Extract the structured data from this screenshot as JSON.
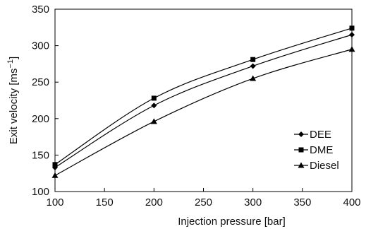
{
  "chart_data": {
    "type": "line",
    "xlabel": "Injection pressure [bar]",
    "ylabel_main": "Exit velocity [ms",
    "ylabel_sup": "−1",
    "ylabel_end": "]",
    "xlim": [
      100,
      400
    ],
    "ylim": [
      100,
      350
    ],
    "x_ticks": [
      "100",
      "150",
      "200",
      "250",
      "300",
      "350",
      "400"
    ],
    "y_ticks": [
      "100",
      "150",
      "200",
      "250",
      "300",
      "350"
    ],
    "grid": false,
    "legend_position": "bottom-right",
    "series": [
      {
        "name": "DEE",
        "marker": "diamond",
        "x": [
          100,
          200,
          300,
          400
        ],
        "y": [
          133,
          218,
          272,
          315
        ]
      },
      {
        "name": "DME",
        "marker": "square",
        "x": [
          100,
          200,
          300,
          400
        ],
        "y": [
          137,
          228,
          281,
          324
        ]
      },
      {
        "name": "Diesel",
        "marker": "triangle",
        "x": [
          100,
          200,
          300,
          400
        ],
        "y": [
          122,
          196,
          255,
          295
        ]
      }
    ],
    "colors": {
      "line": "#000000",
      "axis": "#000000"
    }
  }
}
